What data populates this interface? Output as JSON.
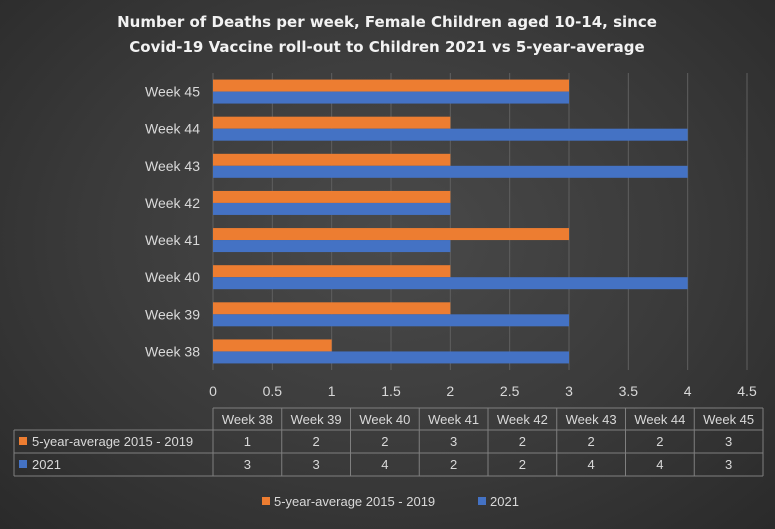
{
  "chart_data": {
    "type": "bar",
    "orientation": "horizontal",
    "title_line1": "Number of Deaths per week, Female Children aged 10-14, since",
    "title_line2": "Covid-19 Vaccine roll-out to Children 2021 vs 5-year-average",
    "categories": [
      "Week 38",
      "Week 39",
      "Week 40",
      "Week 41",
      "Week 42",
      "Week 43",
      "Week 44",
      "Week 45"
    ],
    "series": [
      {
        "name": "5-year-average 2015 - 2019",
        "color": "#ed7d31",
        "values": [
          1,
          2,
          2,
          3,
          2,
          2,
          2,
          3
        ]
      },
      {
        "name": "2021",
        "color": "#4472c4",
        "values": [
          3,
          3,
          4,
          2,
          2,
          4,
          4,
          3
        ]
      }
    ],
    "xlim": [
      0,
      4.5
    ],
    "ticks": [
      "0",
      "0.5",
      "1",
      "1.5",
      "2",
      "2.5",
      "3",
      "3.5",
      "4",
      "4.5"
    ],
    "grid": true,
    "data_table": true,
    "legend_position": "bottom"
  }
}
